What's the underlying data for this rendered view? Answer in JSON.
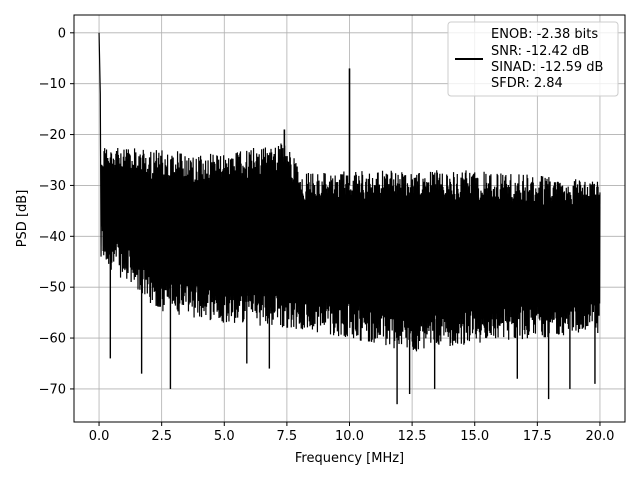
{
  "chart_data": {
    "type": "line",
    "title": "",
    "xlabel": "Frequency [MHz]",
    "ylabel": "PSD [dB]",
    "xlim": [
      -1.0,
      21.0
    ],
    "ylim": [
      -76.5,
      3.5
    ],
    "x_ticks": [
      0.0,
      2.5,
      5.0,
      7.5,
      10.0,
      12.5,
      15.0,
      17.5,
      20.0
    ],
    "x_tick_labels": [
      "0.0",
      "2.5",
      "5.0",
      "7.5",
      "10.0",
      "12.5",
      "15.0",
      "17.5",
      "20.0"
    ],
    "y_ticks": [
      0,
      -10,
      -20,
      -30,
      -40,
      -50,
      -60,
      -70
    ],
    "y_tick_labels": [
      "0",
      "−10",
      "−20",
      "−30",
      "−40",
      "−50",
      "−60",
      "−70"
    ],
    "grid": true,
    "legend_position": "top-right",
    "series": [
      {
        "color": "#000000",
        "description": "noise-like power spectral density trace",
        "peaks": [
          {
            "x": 0.0,
            "y": 0.0
          },
          {
            "x": 0.05,
            "y": -12.0
          },
          {
            "x": 7.4,
            "y": -19.0
          },
          {
            "x": 10.0,
            "y": -7.0
          }
        ],
        "upper_envelope": [
          {
            "x": 0.1,
            "y": -22
          },
          {
            "x": 0.5,
            "y": -22
          },
          {
            "x": 2.5,
            "y": -23
          },
          {
            "x": 5.0,
            "y": -24
          },
          {
            "x": 7.5,
            "y": -21
          },
          {
            "x": 8.0,
            "y": -27
          },
          {
            "x": 10.0,
            "y": -27
          },
          {
            "x": 12.5,
            "y": -27
          },
          {
            "x": 15.0,
            "y": -27
          },
          {
            "x": 17.5,
            "y": -28
          },
          {
            "x": 20.0,
            "y": -29
          }
        ],
        "lower_envelope": [
          {
            "x": 0.1,
            "y": -45
          },
          {
            "x": 2.5,
            "y": -55
          },
          {
            "x": 5.0,
            "y": -57
          },
          {
            "x": 7.5,
            "y": -58
          },
          {
            "x": 10.0,
            "y": -60
          },
          {
            "x": 12.5,
            "y": -63
          },
          {
            "x": 15.0,
            "y": -61
          },
          {
            "x": 17.5,
            "y": -60
          },
          {
            "x": 20.0,
            "y": -59
          }
        ],
        "minima": [
          {
            "x": 0.45,
            "y": -64
          },
          {
            "x": 1.7,
            "y": -67
          },
          {
            "x": 2.85,
            "y": -70
          },
          {
            "x": 5.9,
            "y": -65
          },
          {
            "x": 6.8,
            "y": -66
          },
          {
            "x": 11.9,
            "y": -73
          },
          {
            "x": 12.4,
            "y": -71
          },
          {
            "x": 13.4,
            "y": -70
          },
          {
            "x": 16.7,
            "y": -68
          },
          {
            "x": 17.95,
            "y": -72
          },
          {
            "x": 18.8,
            "y": -70
          },
          {
            "x": 19.8,
            "y": -69
          }
        ]
      }
    ],
    "legend": {
      "entries": [
        "ENOB: -2.38 bits",
        "SNR: -12.42 dB",
        "SINAD: -12.59 dB",
        "SFDR: 2.84"
      ]
    }
  }
}
